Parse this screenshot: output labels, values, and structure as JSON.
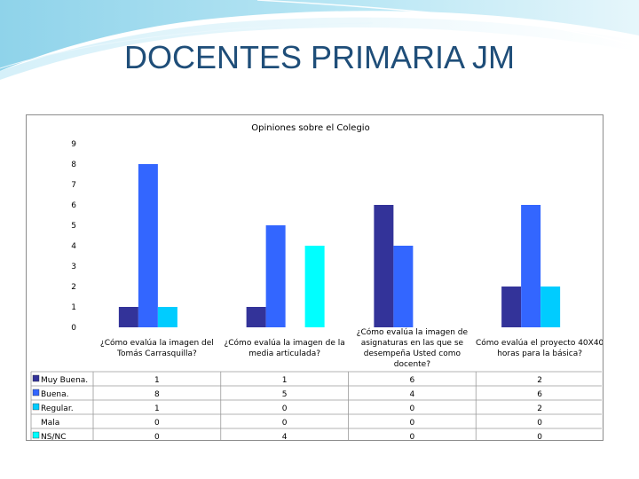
{
  "slide": {
    "title": "DOCENTES PRIMARIA JM"
  },
  "chart_data": {
    "type": "bar",
    "title": "Opiniones sobre el  Colegio",
    "xlabel": "",
    "ylabel": "",
    "ylim": [
      0,
      9
    ],
    "yticks": [
      "0",
      "1",
      "2",
      "3",
      "4",
      "5",
      "6",
      "7",
      "8",
      "9"
    ],
    "grid": false,
    "legend": "table-left",
    "categories": [
      [
        "¿Cómo evalúa la imagen del",
        "Tomás Carrasquilla?"
      ],
      [
        "¿Cómo evalúa la imagen de la",
        "media articulada?"
      ],
      [
        "¿Cómo evalúa la imagen de",
        "asignaturas en las que se",
        "desempeña Usted como",
        "docente?"
      ],
      [
        "Cómo evalúa el proyecto 40X40",
        "horas para la básica?"
      ]
    ],
    "series": [
      {
        "name": "Muy Buena.",
        "color": "#333399",
        "values": [
          1,
          1,
          6,
          2
        ]
      },
      {
        "name": "Buena.",
        "color": "#3366ff",
        "values": [
          8,
          5,
          4,
          6
        ]
      },
      {
        "name": "Regular.",
        "color": "#00ccff",
        "values": [
          1,
          0,
          0,
          2
        ]
      },
      {
        "name": "Mala",
        "color": "#ffffff",
        "values": [
          0,
          0,
          0,
          0
        ]
      },
      {
        "name": "NS/NC",
        "color": "#00ffff",
        "values": [
          0,
          4,
          0,
          0
        ]
      }
    ]
  }
}
